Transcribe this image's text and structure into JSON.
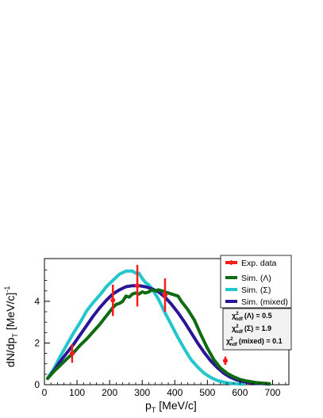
{
  "chart_data": {
    "type": "line",
    "xlabel": "p",
    "xlabel_sub": "T",
    "xlabel_unit": "[MeV/c]",
    "ylabel": "dN/dp",
    "ylabel_sub": "T",
    "ylabel_unit": "[MeV/c]",
    "ylabel_exp": "-1",
    "xlim": [
      0,
      750
    ],
    "ylim": [
      0,
      6.05
    ],
    "xticks": [
      0,
      100,
      200,
      300,
      400,
      500,
      600,
      700
    ],
    "yticks": [
      0,
      2,
      4
    ],
    "grid": false,
    "legend_position": "top-right",
    "series": [
      {
        "name": "Sim. (Λ)",
        "color": "#0f6b12",
        "x": [
          10,
          30,
          50,
          70,
          90,
          110,
          130,
          150,
          170,
          190,
          210,
          220,
          230,
          240,
          250,
          260,
          270,
          280,
          290,
          300,
          310,
          320,
          330,
          340,
          350,
          360,
          370,
          380,
          390,
          400,
          410,
          420,
          440,
          460,
          480,
          500,
          520,
          540,
          560,
          580,
          600,
          620,
          650,
          690
        ],
        "y": [
          0.3,
          0.65,
          0.95,
          1.25,
          1.55,
          1.9,
          2.2,
          2.55,
          2.9,
          3.3,
          3.7,
          3.85,
          3.9,
          4.0,
          4.25,
          4.2,
          4.35,
          4.4,
          4.35,
          4.45,
          4.4,
          4.45,
          4.55,
          4.5,
          4.55,
          4.5,
          4.45,
          4.4,
          4.35,
          4.3,
          4.25,
          4.0,
          3.6,
          3.1,
          2.4,
          1.75,
          1.2,
          0.8,
          0.55,
          0.38,
          0.25,
          0.18,
          0.1,
          0.05
        ]
      },
      {
        "name": "Sim. (Σ)",
        "color": "#22c6cc",
        "x": [
          10,
          30,
          50,
          70,
          90,
          110,
          130,
          150,
          170,
          190,
          210,
          230,
          250,
          270,
          280,
          290,
          300,
          310,
          320,
          330,
          340,
          350,
          370,
          390,
          410,
          430,
          450,
          470,
          490,
          510,
          530,
          550,
          570,
          590,
          610
        ],
        "y": [
          0.3,
          0.8,
          1.4,
          1.95,
          2.5,
          3.0,
          3.55,
          3.95,
          4.3,
          4.7,
          5.0,
          5.3,
          5.45,
          5.45,
          5.35,
          5.35,
          5.1,
          4.9,
          4.8,
          4.6,
          4.35,
          4.1,
          3.45,
          2.85,
          2.25,
          1.7,
          1.2,
          0.85,
          0.55,
          0.35,
          0.2,
          0.12,
          0.07,
          0.04,
          0.02
        ]
      },
      {
        "name": "Sim. (mixed)",
        "color": "#2a1596",
        "x": [
          10,
          30,
          50,
          70,
          90,
          110,
          130,
          150,
          170,
          190,
          210,
          230,
          250,
          270,
          290,
          310,
          330,
          350,
          370,
          390,
          410,
          430,
          450,
          470,
          490,
          510,
          530,
          550,
          570,
          590,
          610,
          630,
          660,
          690
        ],
        "y": [
          0.3,
          0.7,
          1.15,
          1.55,
          1.95,
          2.4,
          2.85,
          3.3,
          3.7,
          4.05,
          4.35,
          4.55,
          4.7,
          4.75,
          4.75,
          4.7,
          4.6,
          4.45,
          4.2,
          3.85,
          3.45,
          3.0,
          2.5,
          2.0,
          1.55,
          1.15,
          0.82,
          0.55,
          0.36,
          0.23,
          0.15,
          0.1,
          0.06,
          0.03
        ]
      }
    ],
    "exp_data": {
      "name": "Exp. data",
      "color": "#ff1a1a",
      "points": [
        {
          "x": 85,
          "y": 1.5,
          "err": 0.45
        },
        {
          "x": 210,
          "y": 4.05,
          "err": 0.75
        },
        {
          "x": 285,
          "y": 4.75,
          "err": 1.0
        },
        {
          "x": 370,
          "y": 4.3,
          "err": 0.8
        },
        {
          "x": 555,
          "y": 1.15,
          "err": 0.2
        }
      ]
    },
    "chi2_box": [
      {
        "label": "(Λ) = 0.5"
      },
      {
        "label": "(Σ) = 1.9"
      },
      {
        "label": "(mixed) = 0.1"
      }
    ],
    "chi2_symbol": "χ",
    "chi2_sup": "2",
    "chi2_sub": "ndf"
  }
}
